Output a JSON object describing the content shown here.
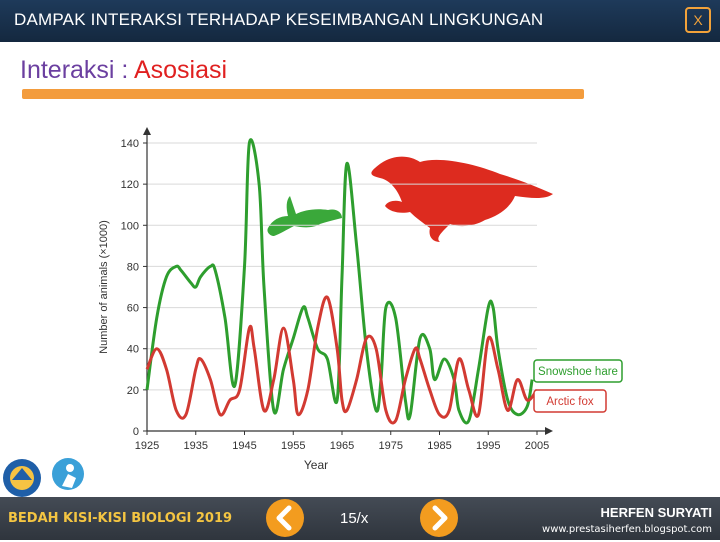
{
  "header": {
    "title": "DAMPAK  INTERAKSI TERHADAP KESEIMBANGAN LINGKUNGAN",
    "close_label": "X"
  },
  "subtitle": {
    "prefix": "Interaksi : ",
    "highlight": "Asosiasi"
  },
  "chart_data": {
    "type": "line",
    "xlabel": "Year",
    "ylabel": "Number of animals (×1000)",
    "xlim": [
      1925,
      2005
    ],
    "ylim": [
      0,
      140
    ],
    "x_ticks": [
      "1925",
      "1935",
      "1945",
      "1955",
      "1965",
      "1975",
      "1985",
      "1995",
      "2005"
    ],
    "y_ticks": [
      "0",
      "20",
      "40",
      "60",
      "80",
      "100",
      "120",
      "140"
    ],
    "series": [
      {
        "name": "Snowshoe hare",
        "color": "#2e9e2e",
        "x": [
          1925,
          1927,
          1929,
          1931,
          1932,
          1934,
          1935,
          1936,
          1938,
          1939,
          1941,
          1943,
          1945,
          1946,
          1948,
          1949,
          1951,
          1953,
          1955,
          1957,
          1958,
          1960,
          1962,
          1964,
          1965,
          1966,
          1968,
          1970,
          1972,
          1973,
          1974,
          1976,
          1978,
          1979,
          1981,
          1983,
          1984,
          1986,
          1988,
          1989,
          1991,
          1993,
          1995,
          1996,
          1997,
          1999,
          2001,
          2003,
          2004
        ],
        "y": [
          20,
          55,
          75,
          80,
          78,
          72,
          70,
          75,
          80,
          78,
          55,
          22,
          80,
          140,
          120,
          70,
          10,
          30,
          45,
          60,
          55,
          40,
          35,
          15,
          75,
          130,
          90,
          40,
          10,
          25,
          60,
          55,
          15,
          8,
          45,
          40,
          25,
          35,
          25,
          10,
          5,
          30,
          60,
          60,
          40,
          15,
          8,
          12,
          25
        ]
      },
      {
        "name": "Arctic fox",
        "color": "#d23a32",
        "x": [
          1925,
          1927,
          1929,
          1931,
          1933,
          1935,
          1936,
          1938,
          1940,
          1942,
          1944,
          1946,
          1947,
          1949,
          1951,
          1953,
          1955,
          1956,
          1958,
          1960,
          1962,
          1964,
          1965,
          1966,
          1968,
          1970,
          1972,
          1974,
          1976,
          1978,
          1980,
          1981,
          1983,
          1985,
          1987,
          1989,
          1991,
          1993,
          1995,
          1997,
          1999,
          2001,
          2003,
          2005
        ],
        "y": [
          30,
          40,
          30,
          10,
          8,
          30,
          35,
          25,
          8,
          15,
          20,
          50,
          40,
          10,
          25,
          50,
          25,
          8,
          20,
          50,
          65,
          40,
          15,
          10,
          25,
          45,
          40,
          10,
          5,
          25,
          40,
          35,
          20,
          8,
          10,
          35,
          20,
          8,
          45,
          30,
          10,
          25,
          15,
          20
        ]
      }
    ]
  },
  "footer": {
    "left_text": "BEDAH KISI-KISI BIOLOGI 2019",
    "page": "15/x",
    "author": "HERFEN SURYATI",
    "website": "www.prestasiherfen.blogspot.com"
  }
}
